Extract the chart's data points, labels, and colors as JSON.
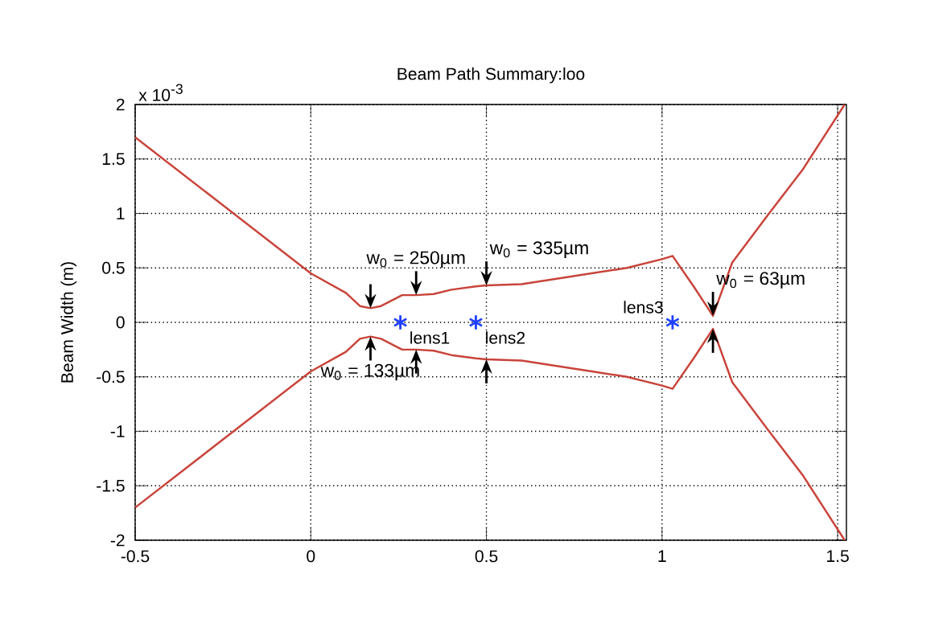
{
  "chart_data": {
    "type": "line",
    "title": "Beam Path Summary:loo",
    "ylabel": "Beam Width  (m)",
    "x": [
      -0.5,
      0.0,
      0.1,
      0.14,
      0.17,
      0.2,
      0.23,
      0.26,
      0.3,
      0.35,
      0.4,
      0.47,
      0.5,
      0.6,
      0.7,
      0.8,
      0.9,
      1.0,
      1.03,
      1.09,
      1.145,
      1.2,
      1.3,
      1.4,
      1.52
    ],
    "series": [
      {
        "color": "#c8443a",
        "values": [
          1.7,
          0.45,
          0.27,
          0.15,
          0.13,
          0.15,
          0.2,
          0.25,
          0.25,
          0.26,
          0.3,
          0.33,
          0.34,
          0.35,
          0.4,
          0.45,
          0.5,
          0.58,
          0.61,
          0.33,
          0.06,
          0.55,
          0.98,
          1.4,
          2.0
        ]
      },
      {
        "color": "#c8443a",
        "values": [
          -1.7,
          -0.45,
          -0.27,
          -0.15,
          -0.13,
          -0.15,
          -0.2,
          -0.25,
          -0.25,
          -0.26,
          -0.3,
          -0.33,
          -0.34,
          -0.35,
          -0.4,
          -0.45,
          -0.5,
          -0.58,
          -0.61,
          -0.33,
          -0.06,
          -0.55,
          -0.98,
          -1.4,
          -2.0
        ]
      },
      {
        "type": "scatter",
        "marker": "cross",
        "color": "#1f3fff",
        "x": [
          0.255,
          0.47,
          1.03
        ],
        "values": [
          0,
          0,
          0
        ]
      }
    ],
    "xlim": [
      -0.5,
      1.525
    ],
    "ylim": [
      -2,
      2
    ],
    "xticks": [
      -0.5,
      0,
      0.5,
      1,
      1.5
    ],
    "yticks": [
      -2,
      -1.5,
      -1,
      -0.5,
      0,
      0.5,
      1,
      1.5,
      2
    ],
    "grid": true,
    "marker": "none",
    "annotations": [
      "x 10$^{-3}$",
      {
        "text": "lens1",
        "x": 0.255,
        "y": 0
      },
      {
        "text": "lens2",
        "x": 0.47,
        "y": 0
      },
      {
        "text": "lens3",
        "x": 1.03,
        "y": 0
      },
      {
        "text": "w$_{0}$ = 133µm",
        "x": 0.17,
        "y": -0.13
      },
      {
        "text": "w$_{0}$ = 250µm",
        "x": 0.3,
        "y": 0.25
      },
      {
        "text": "w$_{0}$ = 335µm",
        "x": 0.5,
        "y": 0.34
      },
      {
        "text": "w$_{0}$ = 63µm",
        "x": 1.145,
        "y": 0.06
      }
    ]
  }
}
